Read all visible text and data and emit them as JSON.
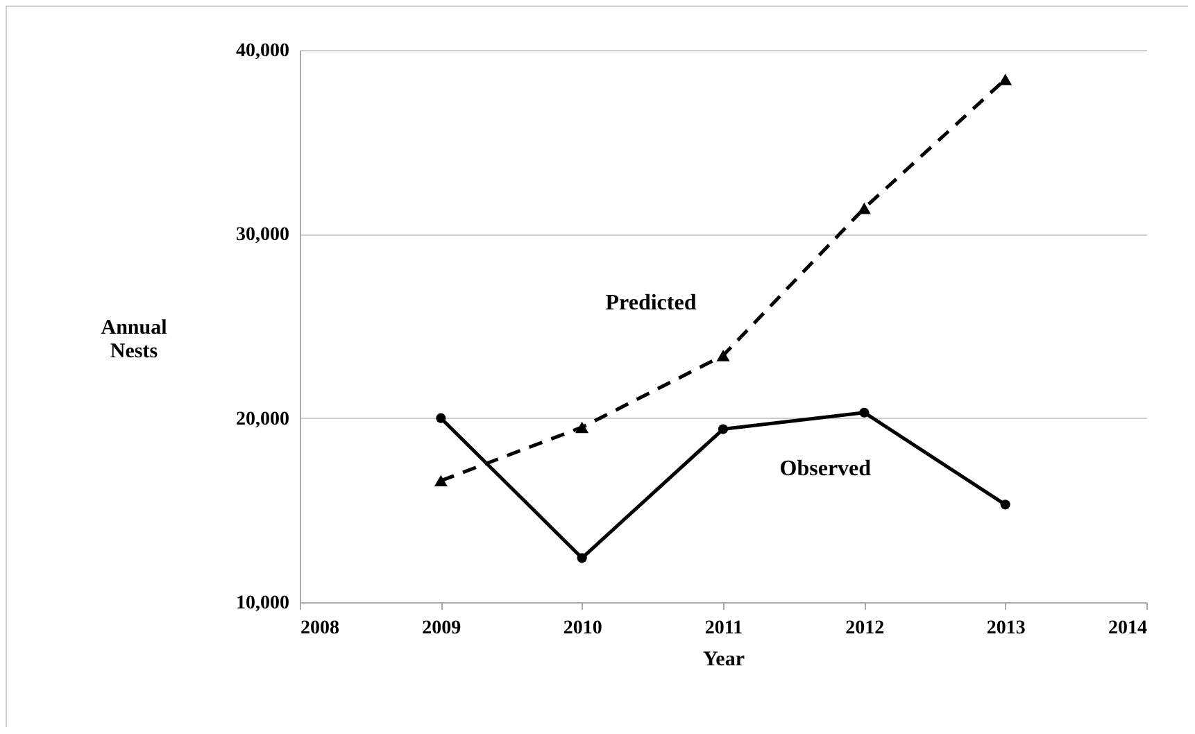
{
  "chart_data": {
    "type": "line",
    "xlabel": "Year",
    "ylabel": "Annual Nests",
    "x": [
      2009,
      2010,
      2011,
      2012,
      2013
    ],
    "series": [
      {
        "name": "Predicted",
        "color": "#000000",
        "marker": "triangle",
        "line_style": "dashed",
        "values": [
          16600,
          19500,
          23400,
          31400,
          38400
        ]
      },
      {
        "name": "Observed",
        "color": "#000000",
        "marker": "circle",
        "line_style": "solid",
        "values": [
          20000,
          12400,
          19400,
          20300,
          15300
        ]
      }
    ],
    "xlim": [
      2008,
      2014
    ],
    "xticks": [
      2008,
      2009,
      2010,
      2011,
      2012,
      2013,
      2014
    ],
    "ylim": [
      10000,
      40000
    ],
    "yticks": [
      {
        "value": 10000,
        "label": "10,000"
      },
      {
        "value": 20000,
        "label": "20,000"
      },
      {
        "value": 30000,
        "label": "30,000"
      },
      {
        "value": 40000,
        "label": "40,000"
      }
    ],
    "grid": "y",
    "legend": false
  }
}
